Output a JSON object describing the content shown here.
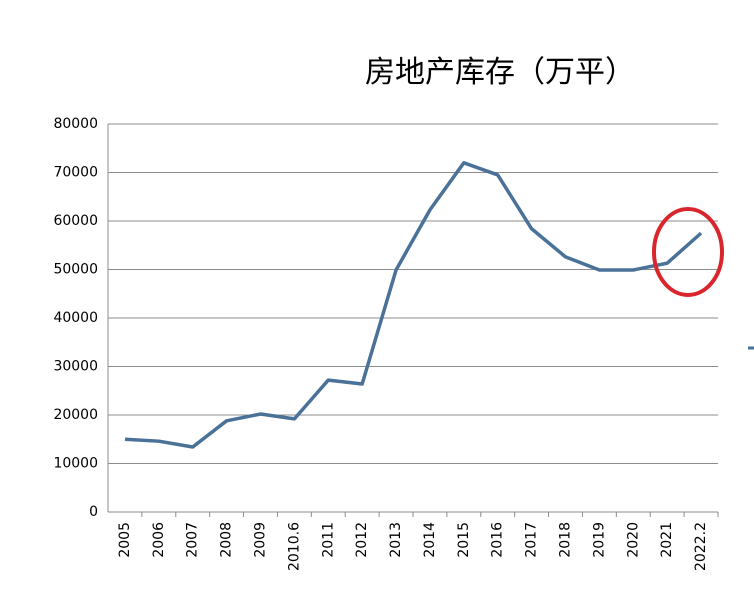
{
  "chart_data": {
    "type": "line",
    "title": "房地产库存（万平）",
    "categories": [
      "2005",
      "2006",
      "2007",
      "2008",
      "2009",
      "2010.6",
      "2011",
      "2012",
      "2013",
      "2014",
      "2015",
      "2016",
      "2017",
      "2018",
      "2019",
      "2020",
      "2021",
      "2022.2"
    ],
    "values": [
      15000,
      14600,
      13400,
      18800,
      20200,
      19200,
      27200,
      26400,
      49900,
      62300,
      72000,
      69500,
      58400,
      52600,
      49900,
      49900,
      51300,
      57500
    ],
    "color": "#4a7198",
    "ylim": [
      0,
      80000
    ],
    "yticks": [
      0,
      10000,
      20000,
      30000,
      40000,
      50000,
      60000,
      70000,
      80000
    ],
    "grid": true
  }
}
